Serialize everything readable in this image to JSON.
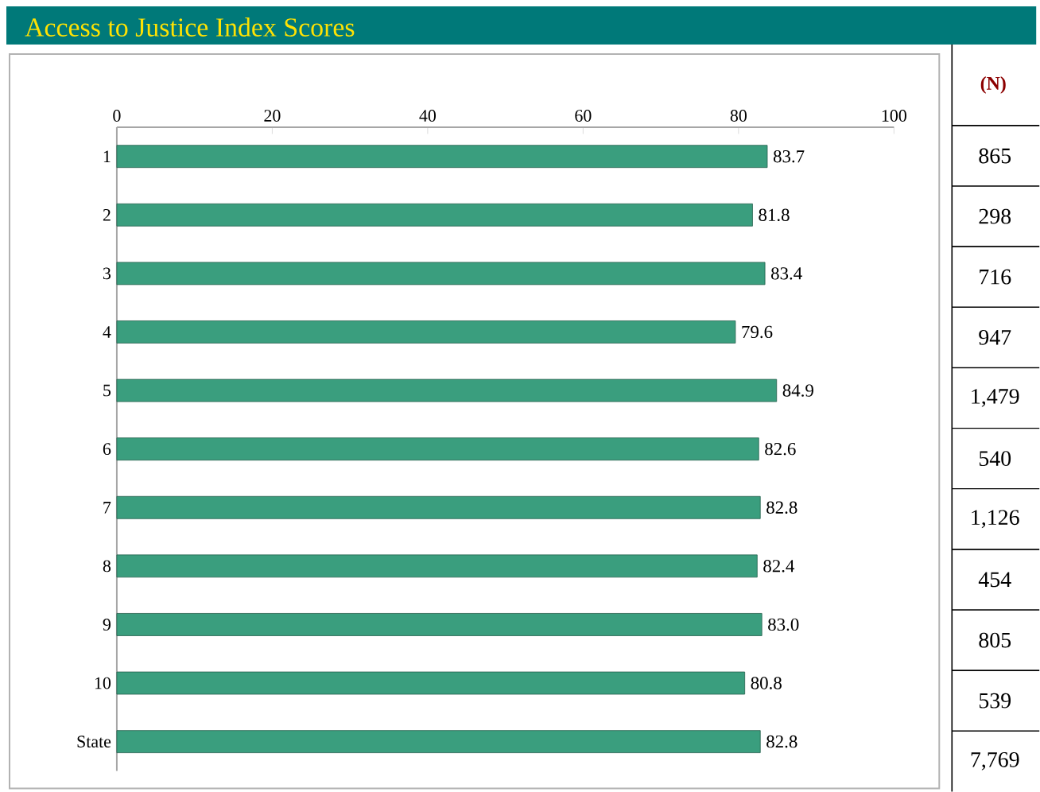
{
  "chart_data": {
    "type": "bar",
    "orientation": "horizontal",
    "title": "Access to Justice Index Scores",
    "categories": [
      "1",
      "2",
      "3",
      "4",
      "5",
      "6",
      "7",
      "8",
      "9",
      "10",
      "State"
    ],
    "values": [
      83.7,
      81.8,
      83.4,
      79.6,
      84.9,
      82.6,
      82.8,
      82.4,
      83.0,
      80.8,
      82.8
    ],
    "value_labels": [
      "83.7",
      "81.8",
      "83.4",
      "79.6",
      "84.9",
      "82.6",
      "82.8",
      "82.4",
      "83.0",
      "80.8",
      "82.8"
    ],
    "color": "#3a9e7e",
    "xlim": [
      0,
      100
    ],
    "xticks": [
      0,
      20,
      40,
      60,
      80,
      100
    ],
    "annotations": [
      "(N)",
      "865",
      "298",
      "716",
      "947",
      "1,479",
      "540",
      "1,126",
      "454",
      "805",
      "539",
      "7,769"
    ]
  }
}
